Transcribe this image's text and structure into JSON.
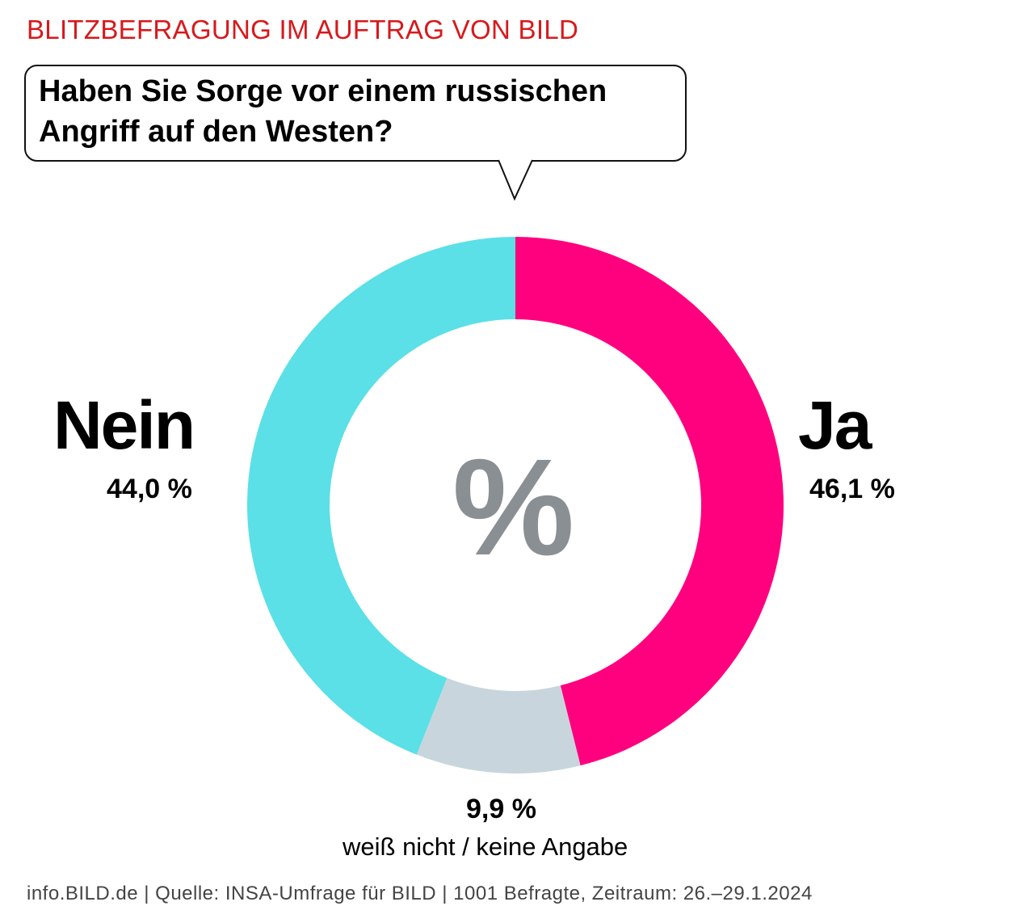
{
  "kicker": "BLITZBEFRAGUNG IM AUFTRAG VON BILD",
  "question": "Haben Sie Sorge vor einem russischen Angriff auf den Westen?",
  "center_symbol": "%",
  "labels": {
    "ja": {
      "title": "Ja",
      "value": "46,1 %"
    },
    "nein": {
      "title": "Nein",
      "value": "44,0 %"
    },
    "dont_know": {
      "value": "9,9 %",
      "label": "weiß nicht / keine Angabe"
    }
  },
  "footer": "info.BILD.de | Quelle: INSA-Umfrage für BILD | 1001 Befragte, Zeitraum: 26.–29.1.2024",
  "chart_data": {
    "type": "pie",
    "donut": true,
    "title": "Haben Sie Sorge vor einem russischen Angriff auf den Westen?",
    "categories": [
      "Ja",
      "weiß nicht / keine Angabe",
      "Nein"
    ],
    "values": [
      46.1,
      9.9,
      44.0
    ],
    "colors": [
      "#ff007f",
      "#c8d5dc",
      "#5ae0e6"
    ],
    "start": "top, clockwise",
    "unit": "%"
  }
}
